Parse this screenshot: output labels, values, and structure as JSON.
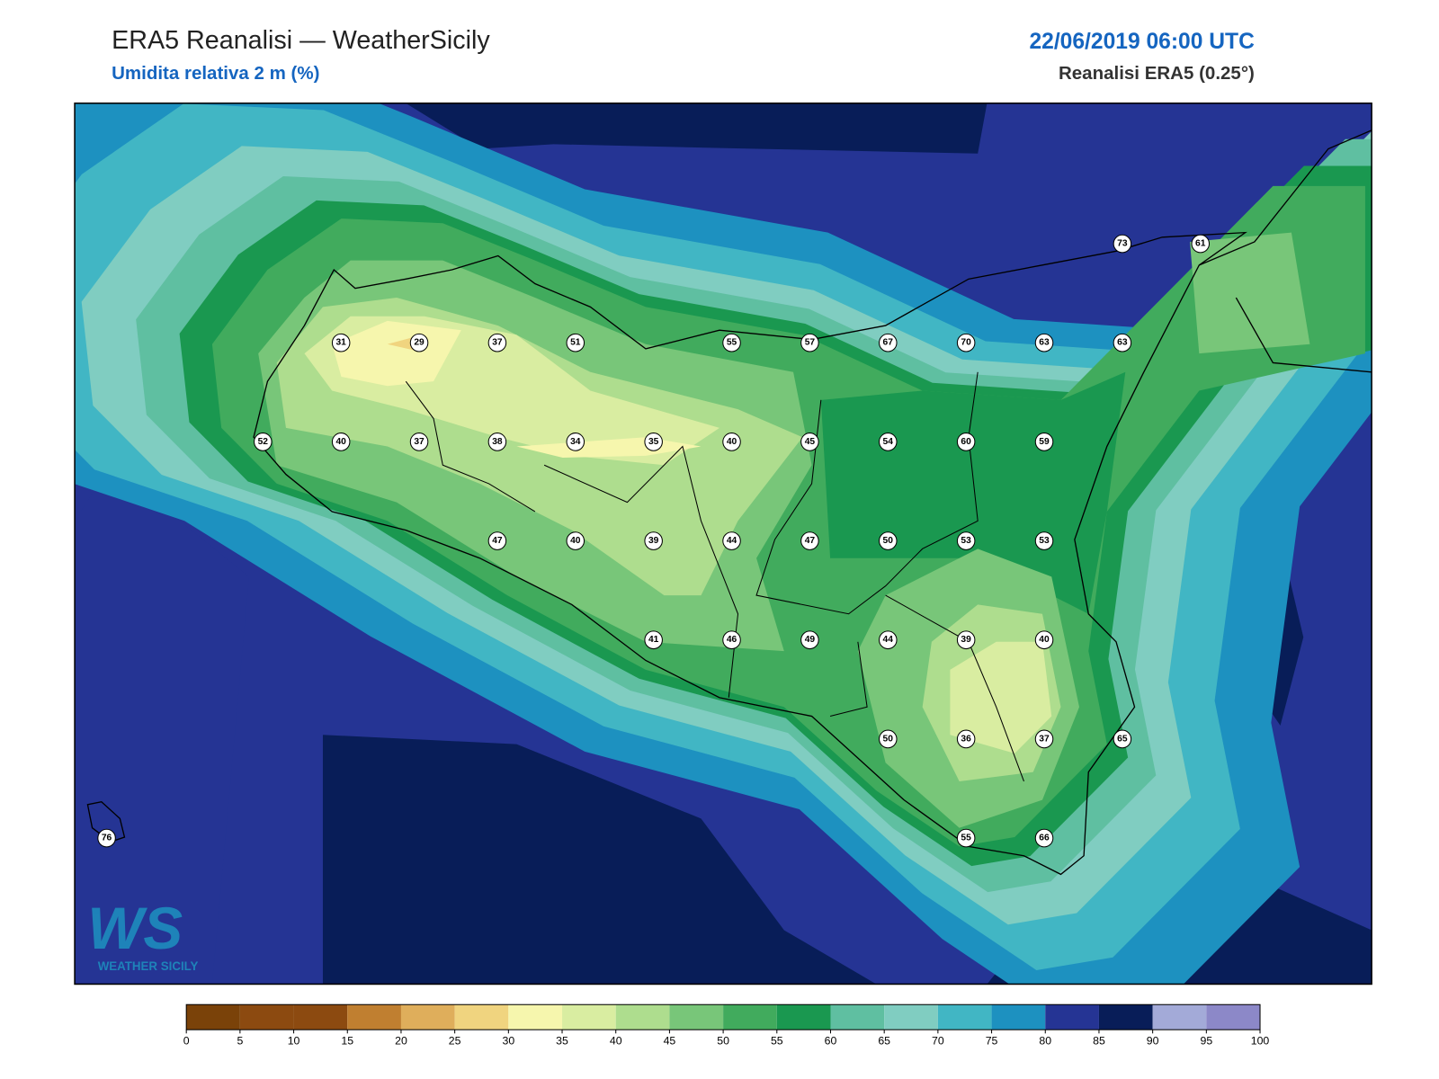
{
  "header": {
    "title": "ERA5 Reanalisi — WeatherSicily",
    "subtitle": "Umidita relativa 2 m (%)",
    "datetime": "22/06/2019 06:00 UTC",
    "source": "Reanalisi ERA5 (0.25°)"
  },
  "logo": {
    "mark": "WS",
    "text": "WEATHER SICILY"
  },
  "stations": [
    73,
    61,
    31,
    29,
    37,
    51,
    55,
    57,
    67,
    70,
    63,
    63,
    52,
    40,
    37,
    38,
    34,
    35,
    40,
    45,
    54,
    60,
    59,
    47,
    40,
    39,
    44,
    47,
    50,
    53,
    53,
    41,
    46,
    49,
    44,
    39,
    40,
    50,
    36,
    37,
    65,
    76,
    55,
    66
  ],
  "colorbar": {
    "ticks": [
      0,
      5,
      10,
      15,
      20,
      25,
      30,
      35,
      40,
      45,
      50,
      55,
      60,
      65,
      70,
      75,
      80,
      85,
      90,
      95,
      100
    ],
    "colors": [
      "#7a4209",
      "#8c4a10",
      "#8c4a10",
      "#c07f30",
      "#dfae5b",
      "#f0d47f",
      "#f6f6ad",
      "#d9eda1",
      "#aedd8e",
      "#78c679",
      "#41ab5d",
      "#1a9850",
      "#5fbfa1",
      "#80cdc1",
      "#41b6c4",
      "#1d91c0",
      "#253494",
      "#081d58",
      "#a3aad8",
      "#8c88c8"
    ]
  }
}
